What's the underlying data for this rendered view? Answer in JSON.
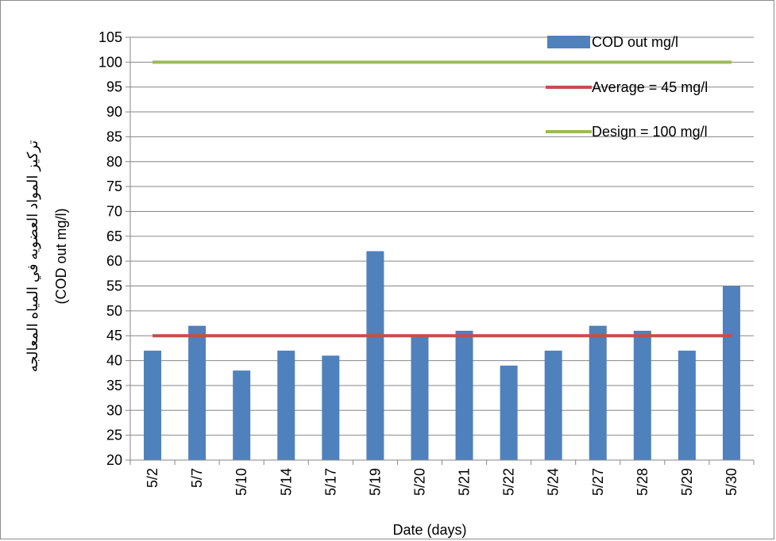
{
  "chart_data": {
    "type": "bar",
    "title": "",
    "xlabel": "Date (days)",
    "ylabel_line1": "تركيز المواد العضويه في المياه المعالجه",
    "ylabel_line2": "(COD out mg/l)",
    "ylim": [
      20,
      105
    ],
    "yticks": [
      "20",
      "25",
      "30",
      "35",
      "40",
      "45",
      "50",
      "55",
      "60",
      "65",
      "70",
      "75",
      "80",
      "85",
      "90",
      "95",
      "100",
      "105"
    ],
    "grid": true,
    "legend_position": "top-right",
    "categories": [
      "5/2",
      "5/7",
      "5/10",
      "5/14",
      "5/17",
      "5/19",
      "5/20",
      "5/21",
      "5/22",
      "5/24",
      "5/27",
      "5/28",
      "5/29",
      "5/30"
    ],
    "series": [
      {
        "name": "COD out mg/l",
        "type": "bar",
        "color": "#4f81bd",
        "values": [
          42,
          47,
          38,
          42,
          41,
          62,
          45,
          46,
          39,
          42,
          47,
          46,
          42,
          55
        ]
      },
      {
        "name": "Average = 45 mg/l",
        "type": "line",
        "color": "#c0504d",
        "values": [
          45,
          45,
          45,
          45,
          45,
          45,
          45,
          45,
          45,
          45,
          45,
          45,
          45,
          45
        ]
      },
      {
        "name": "Design = 100 mg/l",
        "type": "line",
        "color": "#9bbb59",
        "values": [
          100,
          100,
          100,
          100,
          100,
          100,
          100,
          100,
          100,
          100,
          100,
          100,
          100,
          100
        ]
      }
    ]
  }
}
